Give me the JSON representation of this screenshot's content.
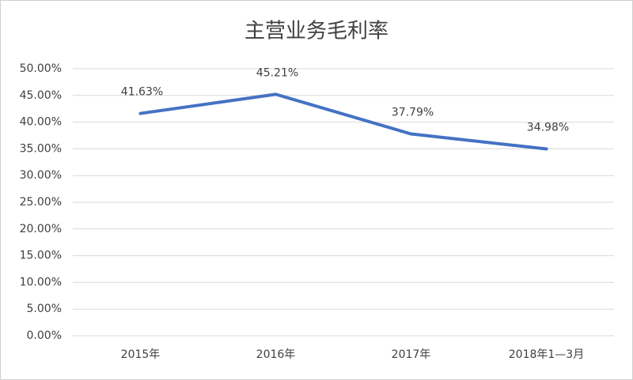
{
  "chart_data": {
    "type": "line",
    "title": "主营业务毛利率",
    "categories": [
      "2015年",
      "2016年",
      "2017年",
      "2018年1—3月"
    ],
    "values": [
      41.63,
      45.21,
      37.79,
      34.98
    ],
    "value_labels": [
      "41.63%",
      "45.21%",
      "37.79%",
      "34.98%"
    ],
    "color": "#4472c4",
    "ylim": [
      0,
      50
    ],
    "yticks": [
      {
        "value": 0,
        "label": "0.00%"
      },
      {
        "value": 5,
        "label": "5.00%"
      },
      {
        "value": 10,
        "label": "10.00%"
      },
      {
        "value": 15,
        "label": "15.00%"
      },
      {
        "value": 20,
        "label": "20.00%"
      },
      {
        "value": 25,
        "label": "25.00%"
      },
      {
        "value": 30,
        "label": "30.00%"
      },
      {
        "value": 35,
        "label": "35.00%"
      },
      {
        "value": 40,
        "label": "40.00%"
      },
      {
        "value": 45,
        "label": "45.00%"
      },
      {
        "value": 50,
        "label": "50.00%"
      }
    ],
    "grid": true
  }
}
